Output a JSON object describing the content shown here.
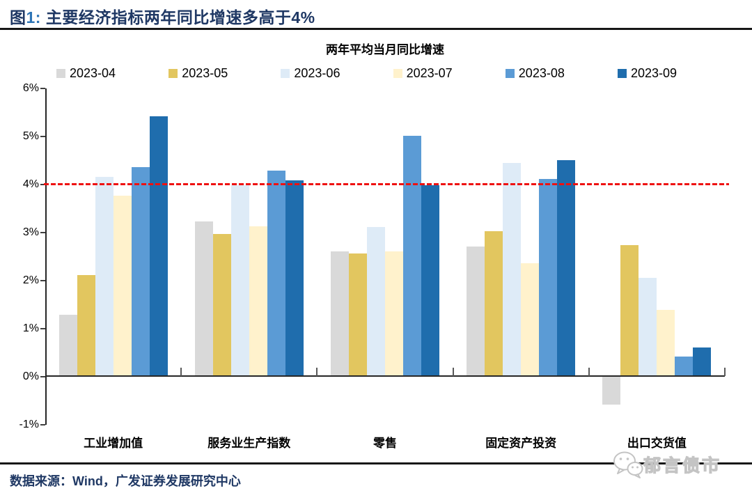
{
  "figure": {
    "label_prefix": "图",
    "label_number": "1:",
    "title_text": " 主要经济指标两年同比增速多高于4%"
  },
  "chart_data": {
    "type": "bar",
    "title": "两年平均当月同比增速",
    "categories": [
      "工业增加值",
      "服务业生产指数",
      "零售",
      "固定资产投资",
      "出口交货值"
    ],
    "series": [
      {
        "name": "2023-04",
        "color": "#D9D9D9",
        "values": [
          1.27,
          3.22,
          2.6,
          2.7,
          -0.6
        ]
      },
      {
        "name": "2023-05",
        "color": "#E2C65F",
        "values": [
          2.1,
          2.95,
          2.55,
          3.02,
          2.72
        ]
      },
      {
        "name": "2023-06",
        "color": "#DEEBF7",
        "values": [
          4.15,
          3.97,
          3.1,
          4.43,
          2.05
        ]
      },
      {
        "name": "2023-07",
        "color": "#FFF2CC",
        "values": [
          3.75,
          3.12,
          2.6,
          2.35,
          1.37
        ]
      },
      {
        "name": "2023-08",
        "color": "#5B9BD5",
        "values": [
          4.35,
          4.27,
          5.0,
          4.1,
          0.4
        ]
      },
      {
        "name": "2023-09",
        "color": "#1F6DAD",
        "values": [
          5.4,
          4.07,
          3.97,
          4.5,
          0.6
        ]
      }
    ],
    "ylim": [
      -1,
      6
    ],
    "y_tick_labels": [
      "6%",
      "5%",
      "4%",
      "3%",
      "2%",
      "1%",
      "0%",
      "-1%"
    ],
    "reference_line": {
      "value": 4,
      "color": "#EE1111",
      "style": "dashed"
    },
    "legend_position": "top",
    "grid": false
  },
  "footer": {
    "source": "数据来源：Wind，广发证券发展研究中心"
  },
  "watermark": {
    "icon": "wechat-icon",
    "text": "郁言债市"
  },
  "colors": {
    "title_navy": "#1F3864",
    "figure_number_blue": "#2E75B6",
    "axis": "#262626",
    "reference_red": "#EE1111"
  }
}
